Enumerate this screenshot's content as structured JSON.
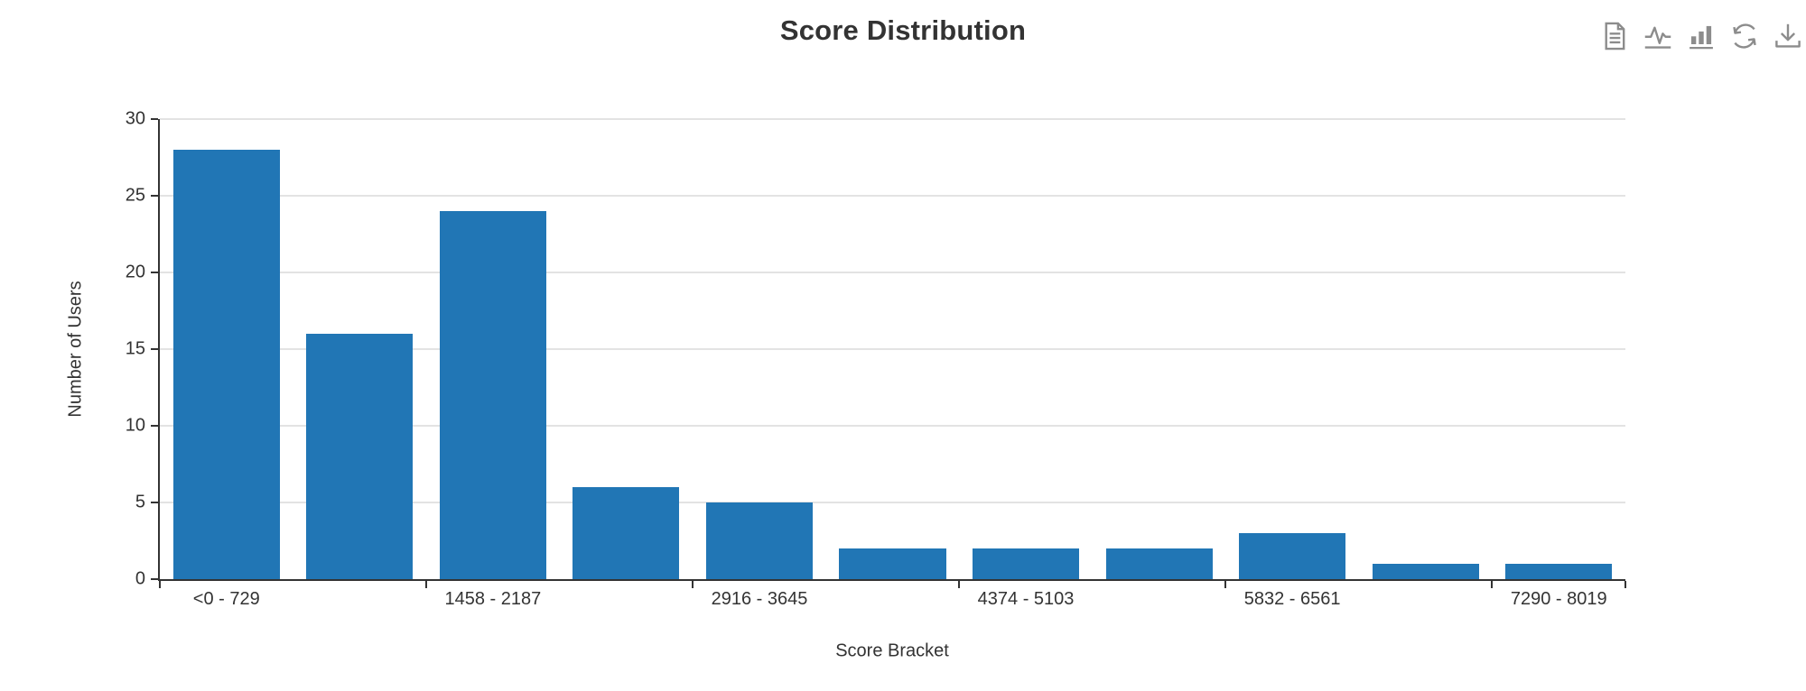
{
  "chart_data": {
    "type": "bar",
    "title": "Score Distribution",
    "xlabel": "Score Bracket",
    "ylabel": "Number of Users",
    "categories": [
      "<0 - 729",
      "",
      "1458 - 2187",
      "",
      "2916 - 3645",
      "",
      "4374 - 5103",
      "",
      "5832 - 6561",
      "",
      "7290 - 8019"
    ],
    "values": [
      28,
      16,
      24,
      6,
      5,
      2,
      2,
      2,
      3,
      1,
      1
    ],
    "ylim": [
      0,
      30
    ],
    "yticks": [
      0,
      5,
      10,
      15,
      20,
      25,
      30
    ],
    "x_label_interval": 2,
    "grid": true,
    "legend": false
  },
  "toolbox": {
    "icons": [
      {
        "name": "data-view-icon"
      },
      {
        "name": "line-chart-icon"
      },
      {
        "name": "bar-chart-icon"
      },
      {
        "name": "restore-icon"
      },
      {
        "name": "download-icon"
      }
    ]
  },
  "colors": {
    "bar": "#2176b5",
    "axis": "#333333",
    "grid": "#e3e3e3",
    "text": "#333333",
    "icon": "#8c8c8c",
    "background": "#ffffff"
  }
}
